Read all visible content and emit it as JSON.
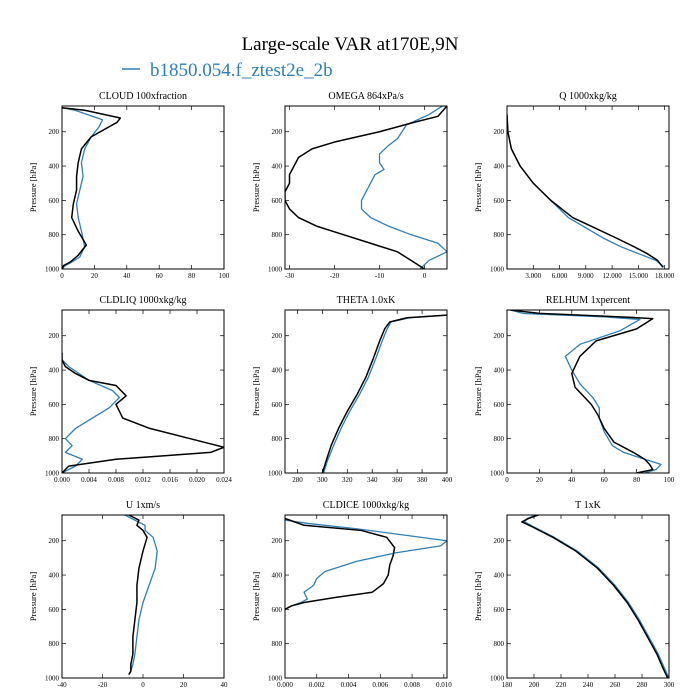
{
  "figure": {
    "title": "Large-scale VAR at170E,9N",
    "legend_label": "b1850.054.f_ztest2e_2b",
    "legend_color": "#2f7fb5",
    "second_series_color": "#000000"
  },
  "chart_data": [
    {
      "type": "line",
      "title": "CLOUD  100xfraction",
      "ylabel": "Pressure [hPa]",
      "xlim": [
        0,
        100
      ],
      "ylim": [
        1000,
        50
      ],
      "xticks": [
        "0",
        "20",
        "40",
        "60",
        "80",
        "100"
      ],
      "xtick_values": [
        0,
        20,
        40,
        60,
        80,
        100
      ],
      "yticks": [
        "200",
        "400",
        "600",
        "800",
        "1000"
      ],
      "series": [
        {
          "name": "b1850.054.f_ztest2e_2b",
          "color": "#2f7fb5",
          "x": [
            0,
            8,
            25,
            23,
            18,
            14,
            12,
            13,
            11,
            9,
            10,
            12,
            14,
            11,
            6,
            2,
            0
          ],
          "y": [
            60,
            75,
            130,
            170,
            230,
            300,
            380,
            460,
            540,
            620,
            700,
            780,
            870,
            930,
            960,
            980,
            1000
          ]
        },
        {
          "name": "",
          "color": "#000000",
          "x": [
            0,
            14,
            36,
            34,
            18,
            12,
            10,
            9,
            9,
            7,
            6,
            10,
            15,
            10,
            5,
            1,
            0
          ],
          "y": [
            60,
            75,
            120,
            145,
            230,
            300,
            380,
            460,
            540,
            620,
            700,
            780,
            860,
            920,
            960,
            980,
            1000
          ]
        }
      ]
    },
    {
      "type": "line",
      "title": "OMEGA  864xPa/s",
      "ylabel": "Pressure [hPa]",
      "xlim": [
        -31,
        5
      ],
      "ylim": [
        1000,
        50
      ],
      "xticks": [
        "-30",
        "-20",
        "-10",
        "0"
      ],
      "xtick_values": [
        -30,
        -20,
        -10,
        0
      ],
      "yticks": [
        "200",
        "400",
        "600",
        "800",
        "1000"
      ],
      "series": [
        {
          "name": "b1850.054.f_ztest2e_2b",
          "color": "#2f7fb5",
          "x": [
            4,
            1,
            -4,
            -5,
            -6,
            -8,
            -10,
            -10,
            -9,
            -11,
            -12,
            -13,
            -14,
            -14,
            -12,
            -8,
            -3,
            3,
            5,
            1,
            -1
          ],
          "y": [
            50,
            100,
            160,
            200,
            240,
            280,
            330,
            380,
            420,
            450,
            500,
            550,
            600,
            650,
            700,
            750,
            800,
            850,
            900,
            950,
            1000
          ]
        },
        {
          "name": "",
          "color": "#000000",
          "x": [
            5,
            4,
            3,
            -3,
            -10,
            -20,
            -25,
            -28,
            -29,
            -30,
            -30,
            -31,
            -31,
            -30,
            -28,
            -24,
            -18,
            -12,
            -6,
            -3,
            0
          ],
          "y": [
            50,
            80,
            110,
            150,
            200,
            260,
            300,
            350,
            400,
            450,
            500,
            550,
            600,
            650,
            700,
            750,
            800,
            850,
            900,
            950,
            1000
          ]
        }
      ]
    },
    {
      "type": "line",
      "title": "Q  1000xkg/kg",
      "ylabel": "Pressure [hPa]",
      "xlim": [
        0,
        18.5
      ],
      "ylim": [
        1000,
        50
      ],
      "xticks": [
        "3.000",
        "6.000",
        "9.000",
        "12.000",
        "15.000",
        "18.000"
      ],
      "xtick_values": [
        3,
        6,
        9,
        12,
        15,
        18
      ],
      "yticks": [
        "200",
        "400",
        "600",
        "800",
        "1000"
      ],
      "series": [
        {
          "name": "b1850.054.f_ztest2e_2b",
          "color": "#2f7fb5",
          "x": [
            0,
            0.1,
            0.5,
            1.5,
            3,
            5,
            7,
            9,
            11,
            13,
            15,
            17,
            18
          ],
          "y": [
            100,
            200,
            300,
            400,
            500,
            600,
            700,
            760,
            820,
            870,
            910,
            950,
            990
          ]
        },
        {
          "name": "",
          "color": "#000000",
          "x": [
            0,
            0.1,
            0.5,
            1.5,
            3,
            5,
            7.5,
            10,
            12.5,
            14.5,
            16,
            17.2,
            17.8
          ],
          "y": [
            100,
            200,
            300,
            400,
            500,
            600,
            700,
            760,
            820,
            870,
            910,
            950,
            990
          ]
        }
      ]
    },
    {
      "type": "line",
      "title": "CLDLIQ  1000xkg/kg",
      "ylabel": "Pressure [hPa]",
      "xlim": [
        0,
        0.024
      ],
      "ylim": [
        1000,
        50
      ],
      "xticks": [
        "0.000",
        "0.004",
        "0.008",
        "0.012",
        "0.016",
        "0.020",
        "0.024"
      ],
      "xtick_values": [
        0,
        0.004,
        0.008,
        0.012,
        0.016,
        0.02,
        0.024
      ],
      "yticks": [
        "200",
        "400",
        "600",
        "800",
        "1000"
      ],
      "series": [
        {
          "name": "b1850.054.f_ztest2e_2b",
          "color": "#2f7fb5",
          "x": [
            0,
            0,
            0.001,
            0.004,
            0.0075,
            0.0085,
            0.007,
            0.0045,
            0.002,
            0.0005,
            0.0015,
            0.0005,
            0.003,
            0.002,
            0
          ],
          "y": [
            300,
            340,
            380,
            460,
            520,
            560,
            620,
            680,
            740,
            800,
            840,
            880,
            920,
            960,
            1000
          ]
        },
        {
          "name": "",
          "color": "#000000",
          "x": [
            0,
            0,
            0.0005,
            0.002,
            0.004,
            0.008,
            0.0095,
            0.008,
            0.009,
            0.013,
            0.019,
            0.024,
            0.022,
            0.008,
            0.001,
            0
          ],
          "y": [
            300,
            340,
            380,
            420,
            460,
            490,
            550,
            600,
            680,
            740,
            800,
            850,
            880,
            920,
            960,
            1000
          ]
        }
      ]
    },
    {
      "type": "line",
      "title": "THETA  1.0xK",
      "ylabel": "Pressure [hPa]",
      "xlim": [
        270,
        400
      ],
      "ylim": [
        1000,
        50
      ],
      "xticks": [
        "280",
        "300",
        "320",
        "340",
        "360",
        "380",
        "400"
      ],
      "xtick_values": [
        280,
        300,
        320,
        340,
        360,
        380,
        400
      ],
      "yticks": [
        "200",
        "400",
        "600",
        "800",
        "1000"
      ],
      "series": [
        {
          "name": "b1850.054.f_ztest2e_2b",
          "color": "#2f7fb5",
          "x": [
            400,
            370,
            355,
            352,
            348,
            343,
            337,
            330,
            322,
            315,
            309,
            304,
            301
          ],
          "y": [
            80,
            95,
            120,
            160,
            230,
            330,
            440,
            540,
            640,
            740,
            840,
            930,
            1000
          ]
        },
        {
          "name": "",
          "color": "#000000",
          "x": [
            400,
            368,
            354,
            350,
            346,
            341,
            335,
            328,
            320,
            313,
            307,
            303,
            300
          ],
          "y": [
            80,
            95,
            120,
            160,
            230,
            330,
            440,
            540,
            640,
            740,
            840,
            930,
            1000
          ]
        }
      ]
    },
    {
      "type": "line",
      "title": "RELHUM  1xpercent",
      "ylabel": "Pressure [hPa]",
      "xlim": [
        0,
        100
      ],
      "ylim": [
        1000,
        50
      ],
      "xticks": [
        "0",
        "20",
        "40",
        "60",
        "80",
        "100"
      ],
      "xtick_values": [
        0,
        20,
        40,
        60,
        80,
        100
      ],
      "yticks": [
        "200",
        "400",
        "600",
        "800",
        "1000"
      ],
      "series": [
        {
          "name": "b1850.054.f_ztest2e_2b",
          "color": "#2f7fb5",
          "x": [
            2,
            10,
            60,
            82,
            70,
            45,
            36,
            40,
            45,
            53,
            57,
            57,
            60,
            65,
            72,
            85,
            95,
            92,
            85
          ],
          "y": [
            50,
            70,
            90,
            105,
            170,
            250,
            320,
            400,
            480,
            560,
            620,
            680,
            760,
            840,
            880,
            920,
            950,
            980,
            1000
          ]
        },
        {
          "name": "",
          "color": "#000000",
          "x": [
            2,
            20,
            70,
            90,
            80,
            55,
            45,
            40,
            42,
            48,
            52,
            56,
            60,
            66,
            78,
            85,
            88,
            90,
            80
          ],
          "y": [
            50,
            70,
            90,
            100,
            160,
            230,
            320,
            420,
            500,
            560,
            600,
            660,
            740,
            820,
            880,
            920,
            950,
            980,
            1000
          ]
        }
      ]
    },
    {
      "type": "line",
      "title": "U  1xm/s",
      "ylabel": "Pressure [hPa]",
      "xlim": [
        -40,
        40
      ],
      "ylim": [
        1000,
        50
      ],
      "xticks": [
        "-40",
        "-20",
        "0",
        "20",
        "40"
      ],
      "xtick_values": [
        -40,
        -20,
        0,
        20,
        40
      ],
      "yticks": [
        "200",
        "400",
        "600",
        "800",
        "1000"
      ],
      "series": [
        {
          "name": "b1850.054.f_ztest2e_2b",
          "color": "#2f7fb5",
          "x": [
            -9,
            -4,
            1,
            1,
            5,
            7,
            6,
            3,
            0,
            -2,
            -3,
            -4,
            -5,
            -6,
            -7
          ],
          "y": [
            50,
            80,
            110,
            140,
            180,
            260,
            360,
            460,
            560,
            660,
            760,
            860,
            920,
            960,
            980
          ]
        },
        {
          "name": "",
          "color": "#000000",
          "x": [
            -7,
            -2,
            -3,
            0,
            2,
            0,
            -2,
            -3,
            -3,
            -4,
            -5,
            -5,
            -6,
            -6,
            -7
          ],
          "y": [
            50,
            80,
            110,
            140,
            180,
            260,
            360,
            460,
            560,
            660,
            760,
            860,
            920,
            960,
            980
          ]
        }
      ]
    },
    {
      "type": "line",
      "title": "CLDICE  1000xkg/kg",
      "ylabel": "Pressure [hPa]",
      "xlim": [
        0,
        0.0102
      ],
      "ylim": [
        1000,
        50
      ],
      "xticks": [
        "0.000",
        "0.002",
        "0.004",
        "0.006",
        "0.008",
        "0.010"
      ],
      "xtick_values": [
        0,
        0.002,
        0.004,
        0.006,
        0.008,
        0.01
      ],
      "yticks": [
        "200",
        "400",
        "600",
        "800",
        "1000"
      ],
      "series": [
        {
          "name": "b1850.054.f_ztest2e_2b",
          "color": "#2f7fb5",
          "x": [
            0,
            0.0015,
            0.0045,
            0.0102,
            0.0098,
            0.007,
            0.0045,
            0.0025,
            0.002,
            0.0018,
            0.0012,
            0.0014,
            0.001,
            0.0004,
            0
          ],
          "y": [
            80,
            100,
            130,
            200,
            230,
            270,
            320,
            380,
            420,
            460,
            500,
            540,
            560,
            580,
            600
          ]
        },
        {
          "name": "",
          "color": "#000000",
          "x": [
            0,
            0.0006,
            0.0012,
            0.0048,
            0.0064,
            0.0069,
            0.0068,
            0.0066,
            0.0065,
            0.0062,
            0.0055,
            0.0032,
            0.0012,
            0.0004,
            0
          ],
          "y": [
            70,
            90,
            110,
            140,
            180,
            240,
            290,
            340,
            400,
            450,
            500,
            530,
            560,
            580,
            600
          ]
        }
      ]
    },
    {
      "type": "line",
      "title": "T  1xK",
      "ylabel": "Pressure [hPa]",
      "xlim": [
        180,
        300
      ],
      "ylim": [
        1000,
        50
      ],
      "xticks": [
        "180",
        "200",
        "220",
        "240",
        "260",
        "280",
        "300"
      ],
      "xtick_values": [
        180,
        200,
        220,
        240,
        260,
        280,
        300
      ],
      "yticks": [
        "200",
        "400",
        "600",
        "800",
        "1000"
      ],
      "series": [
        {
          "name": "b1850.054.f_ztest2e_2b",
          "color": "#2f7fb5",
          "x": [
            203,
            195,
            193,
            200,
            215,
            232,
            248,
            260,
            270,
            278,
            285,
            292,
            297,
            300
          ],
          "y": [
            45,
            70,
            90,
            120,
            180,
            260,
            360,
            460,
            560,
            660,
            760,
            860,
            950,
            1000
          ]
        },
        {
          "name": "",
          "color": "#000000",
          "x": [
            205,
            196,
            191,
            199,
            214,
            231,
            247,
            259,
            269,
            277,
            284,
            291,
            296,
            299
          ],
          "y": [
            45,
            70,
            90,
            120,
            180,
            260,
            360,
            460,
            560,
            660,
            760,
            860,
            950,
            1000
          ]
        }
      ]
    }
  ]
}
